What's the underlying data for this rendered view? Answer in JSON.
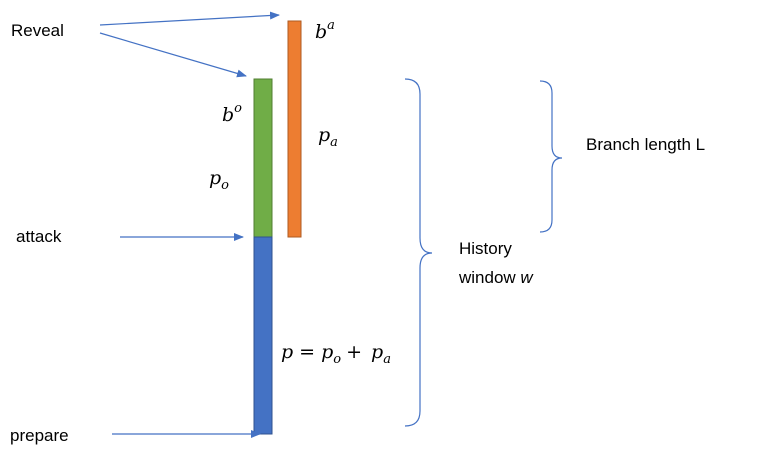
{
  "labels": {
    "reveal": "Reveal",
    "attack": "attack",
    "prepare": "prepare",
    "branch_length": "Branch length L",
    "history_line1": "History",
    "history_line2_text": "window ",
    "history_line2_var": "w"
  },
  "math": {
    "b_a": {
      "base": "b",
      "sup": "a"
    },
    "b_o": {
      "base": "b",
      "sup": "o"
    },
    "p_a": {
      "base": "p",
      "sub": "a"
    },
    "p_o": {
      "base": "p",
      "sub": "o"
    },
    "equation": {
      "lhs": "p",
      "eq": "=",
      "t1_base": "p",
      "t1_sub": "o",
      "plus": "+",
      "t2_base": "p",
      "t2_sub": "a"
    }
  },
  "colors": {
    "attack_branch": "#ed7d31",
    "attack_branch_border": "#ae5a21",
    "honest_branch": "#70ad47",
    "honest_branch_border": "#507e32",
    "prefix": "#4472c4",
    "prefix_border": "#2f528f",
    "arrow": "#4472c4"
  }
}
